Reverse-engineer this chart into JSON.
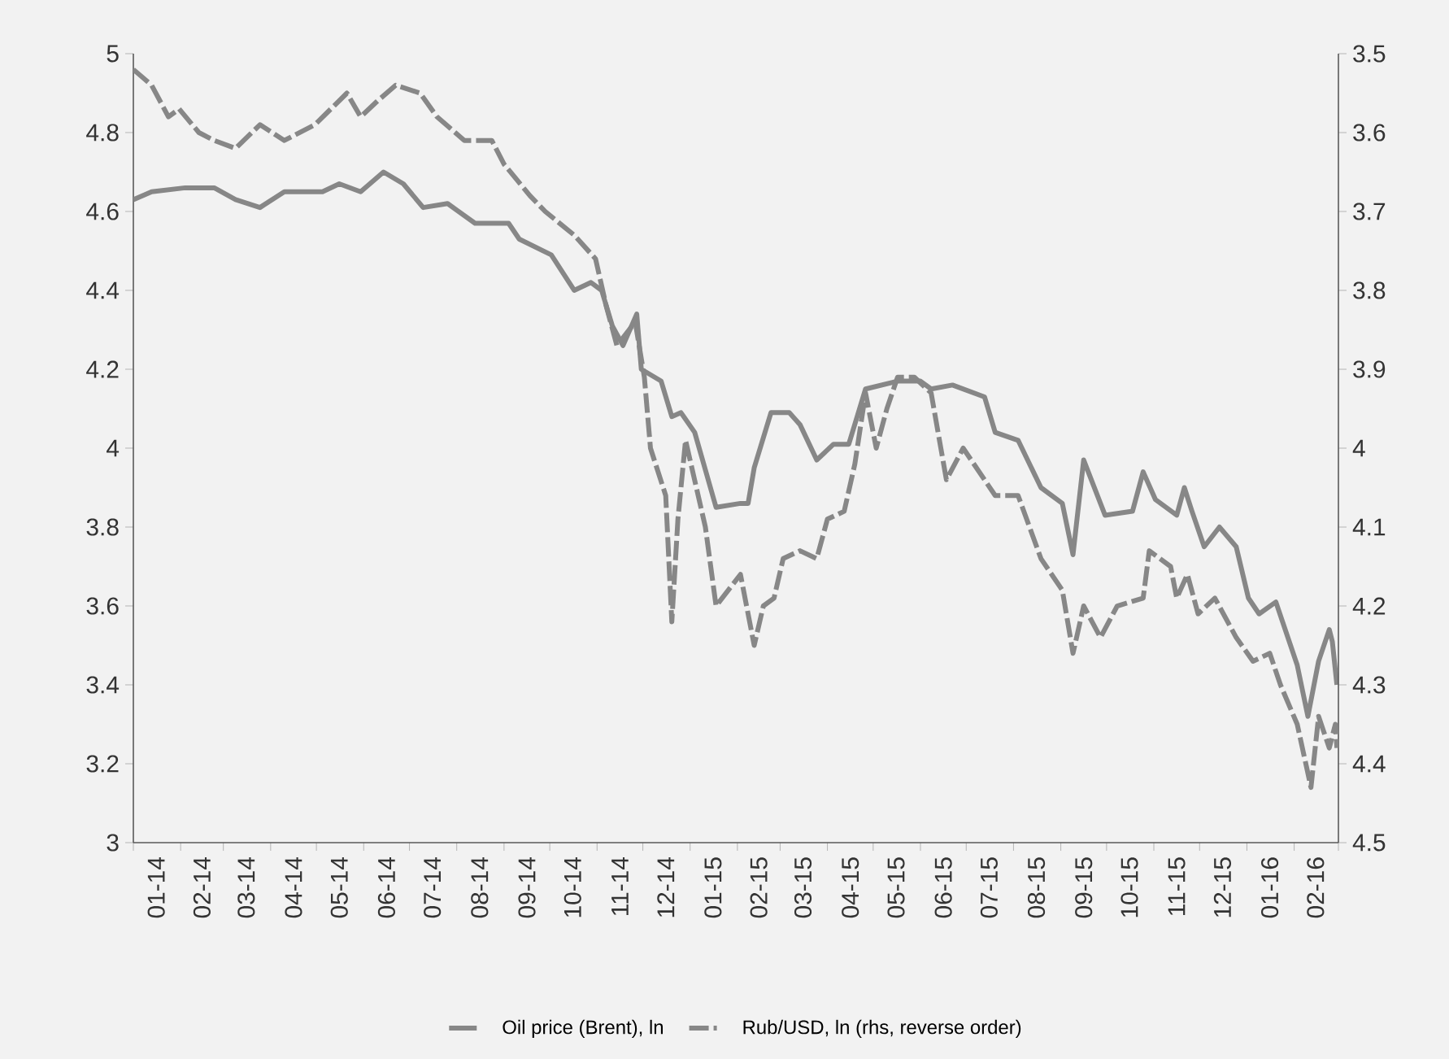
{
  "chart_data": {
    "type": "line",
    "legend": "bottom",
    "xlim": [
      "2014-01-01",
      "2016-03-01"
    ],
    "xticks": [
      {
        "value": "2014-01-01",
        "label": null
      },
      {
        "value": "2014-01-16",
        "label": "01-14"
      },
      {
        "value": "2014-02-01",
        "label": null
      },
      {
        "value": "2014-02-15",
        "label": "02-14"
      },
      {
        "value": "2014-03-01",
        "label": null
      },
      {
        "value": "2014-03-16",
        "label": "03-14"
      },
      {
        "value": "2014-04-01",
        "label": null
      },
      {
        "value": "2014-04-16",
        "label": "04-14"
      },
      {
        "value": "2014-05-01",
        "label": null
      },
      {
        "value": "2014-05-16",
        "label": "05-14"
      },
      {
        "value": "2014-06-01",
        "label": null
      },
      {
        "value": "2014-06-16",
        "label": "06-14"
      },
      {
        "value": "2014-07-01",
        "label": null
      },
      {
        "value": "2014-07-16",
        "label": "07-14"
      },
      {
        "value": "2014-08-01",
        "label": null
      },
      {
        "value": "2014-08-16",
        "label": "08-14"
      },
      {
        "value": "2014-09-01",
        "label": null
      },
      {
        "value": "2014-09-16",
        "label": "09-14"
      },
      {
        "value": "2014-10-01",
        "label": null
      },
      {
        "value": "2014-10-16",
        "label": "10-14"
      },
      {
        "value": "2014-11-01",
        "label": null
      },
      {
        "value": "2014-11-16",
        "label": "11-14"
      },
      {
        "value": "2014-12-01",
        "label": null
      },
      {
        "value": "2014-12-16",
        "label": "12-14"
      },
      {
        "value": "2015-01-01",
        "label": null
      },
      {
        "value": "2015-01-16",
        "label": "01-15"
      },
      {
        "value": "2015-02-01",
        "label": null
      },
      {
        "value": "2015-02-15",
        "label": "02-15"
      },
      {
        "value": "2015-03-01",
        "label": null
      },
      {
        "value": "2015-03-16",
        "label": "03-15"
      },
      {
        "value": "2015-04-01",
        "label": null
      },
      {
        "value": "2015-04-16",
        "label": "04-15"
      },
      {
        "value": "2015-05-01",
        "label": null
      },
      {
        "value": "2015-05-16",
        "label": "05-15"
      },
      {
        "value": "2015-06-01",
        "label": null
      },
      {
        "value": "2015-06-16",
        "label": "06-15"
      },
      {
        "value": "2015-07-01",
        "label": null
      },
      {
        "value": "2015-07-16",
        "label": "07-15"
      },
      {
        "value": "2015-08-01",
        "label": null
      },
      {
        "value": "2015-08-16",
        "label": "08-15"
      },
      {
        "value": "2015-09-01",
        "label": null
      },
      {
        "value": "2015-09-16",
        "label": "09-15"
      },
      {
        "value": "2015-10-01",
        "label": null
      },
      {
        "value": "2015-10-16",
        "label": "10-15"
      },
      {
        "value": "2015-11-01",
        "label": null
      },
      {
        "value": "2015-11-16",
        "label": "11-15"
      },
      {
        "value": "2015-12-01",
        "label": null
      },
      {
        "value": "2015-12-16",
        "label": "12-15"
      },
      {
        "value": "2016-01-01",
        "label": null
      },
      {
        "value": "2016-01-16",
        "label": "01-16"
      },
      {
        "value": "2016-02-01",
        "label": null
      },
      {
        "value": "2016-02-15",
        "label": "02-16"
      },
      {
        "value": "2016-03-01",
        "label": null
      }
    ],
    "ylim": [
      3,
      5
    ],
    "yticks": [
      3,
      3.2,
      3.4,
      3.6,
      3.8,
      4,
      4.2,
      4.4,
      4.6,
      4.8,
      5
    ],
    "y2lim": [
      4.5,
      3.5
    ],
    "y2ticks": [
      3.5,
      3.6,
      3.7,
      3.8,
      3.9,
      4,
      4.1,
      4.2,
      4.3,
      4.4,
      4.5
    ],
    "series": [
      {
        "name": "Oil price (Brent), ln",
        "color": "#878787",
        "line_style": "solid",
        "x": [
          "2014-01-01",
          "2014-01-13",
          "2014-02-04",
          "2014-02-23",
          "2014-03-09",
          "2014-03-25",
          "2014-04-10",
          "2014-05-05",
          "2014-05-16",
          "2014-05-30",
          "2014-06-14",
          "2014-06-27",
          "2014-07-10",
          "2014-07-26",
          "2014-08-13",
          "2014-09-04",
          "2014-09-11",
          "2014-10-02",
          "2014-10-17",
          "2014-10-28",
          "2014-11-04",
          "2014-11-11",
          "2014-11-18",
          "2014-11-27",
          "2014-11-30",
          "2014-12-13",
          "2014-12-20",
          "2014-12-26",
          "2015-01-04",
          "2015-01-18",
          "2015-02-03",
          "2015-02-08",
          "2015-02-12",
          "2015-02-23",
          "2015-03-07",
          "2015-03-14",
          "2015-03-25",
          "2015-04-05",
          "2015-04-15",
          "2015-04-26",
          "2015-05-17",
          "2015-06-01",
          "2015-06-08",
          "2015-06-22",
          "2015-07-13",
          "2015-07-20",
          "2015-08-04",
          "2015-08-19",
          "2015-09-02",
          "2015-09-09",
          "2015-09-16",
          "2015-09-30",
          "2015-10-18",
          "2015-10-25",
          "2015-11-02",
          "2015-11-16",
          "2015-11-21",
          "2015-11-26",
          "2015-12-04",
          "2015-12-14",
          "2015-12-25",
          "2016-01-02",
          "2016-01-09",
          "2016-01-20",
          "2016-02-03",
          "2016-02-10",
          "2016-02-17",
          "2016-02-24",
          "2016-02-26",
          "2016-02-29"
        ],
        "values": [
          4.63,
          4.65,
          4.66,
          4.66,
          4.63,
          4.61,
          4.65,
          4.65,
          4.67,
          4.65,
          4.7,
          4.67,
          4.61,
          4.62,
          4.57,
          4.57,
          4.53,
          4.49,
          4.4,
          4.42,
          4.4,
          4.31,
          4.26,
          4.34,
          4.2,
          4.17,
          4.08,
          4.09,
          4.04,
          3.85,
          3.86,
          3.86,
          3.95,
          4.09,
          4.09,
          4.06,
          3.97,
          4.01,
          4.01,
          4.15,
          4.17,
          4.17,
          4.15,
          4.16,
          4.13,
          4.04,
          4.02,
          3.9,
          3.86,
          3.73,
          3.97,
          3.83,
          3.84,
          3.94,
          3.87,
          3.83,
          3.9,
          3.84,
          3.75,
          3.8,
          3.75,
          3.62,
          3.58,
          3.61,
          3.45,
          3.32,
          3.46,
          3.54,
          3.51,
          3.4
        ]
      },
      {
        "name": "Rub/USD, ln (rhs, reverse order)",
        "color": "#878787",
        "line_style": "dashed",
        "axis": "y2",
        "x": [
          "2014-01-01",
          "2014-01-13",
          "2014-01-24",
          "2014-01-31",
          "2014-02-13",
          "2014-02-23",
          "2014-03-09",
          "2014-03-25",
          "2014-04-10",
          "2014-04-30",
          "2014-05-21",
          "2014-05-30",
          "2014-06-10",
          "2014-06-22",
          "2014-07-08",
          "2014-07-19",
          "2014-08-06",
          "2014-08-24",
          "2014-09-01",
          "2014-09-18",
          "2014-09-28",
          "2014-10-17",
          "2014-10-31",
          "2014-11-07",
          "2014-11-14",
          "2014-11-26",
          "2014-12-02",
          "2014-12-06",
          "2014-12-16",
          "2014-12-20",
          "2014-12-24",
          "2014-12-29",
          "2015-01-11",
          "2015-01-18",
          "2015-02-03",
          "2015-02-12",
          "2015-02-18",
          "2015-02-25",
          "2015-03-03",
          "2015-03-14",
          "2015-03-25",
          "2015-04-01",
          "2015-04-12",
          "2015-04-19",
          "2015-04-26",
          "2015-05-03",
          "2015-05-10",
          "2015-05-17",
          "2015-05-28",
          "2015-06-08",
          "2015-06-18",
          "2015-06-29",
          "2015-07-20",
          "2015-08-04",
          "2015-08-19",
          "2015-09-02",
          "2015-09-09",
          "2015-09-16",
          "2015-09-27",
          "2015-10-08",
          "2015-10-25",
          "2015-10-29",
          "2015-11-12",
          "2015-11-16",
          "2015-11-23",
          "2015-11-30",
          "2015-12-11",
          "2015-12-25",
          "2016-01-05",
          "2016-01-16",
          "2016-01-23",
          "2016-02-03",
          "2016-02-12",
          "2016-02-17",
          "2016-02-24",
          "2016-02-28",
          "2016-02-29"
        ],
        "values": [
          3.52,
          3.54,
          3.58,
          3.57,
          3.6,
          3.61,
          3.62,
          3.59,
          3.61,
          3.59,
          3.55,
          3.58,
          3.56,
          3.54,
          3.55,
          3.58,
          3.61,
          3.61,
          3.64,
          3.68,
          3.7,
          3.73,
          3.76,
          3.82,
          3.87,
          3.84,
          3.91,
          4.0,
          4.06,
          4.22,
          4.09,
          3.99,
          4.1,
          4.2,
          4.16,
          4.25,
          4.2,
          4.19,
          4.14,
          4.13,
          4.14,
          4.09,
          4.08,
          4.02,
          3.93,
          4.0,
          3.95,
          3.91,
          3.91,
          3.93,
          4.04,
          4.0,
          4.06,
          4.06,
          4.14,
          4.18,
          4.26,
          4.2,
          4.24,
          4.2,
          4.19,
          4.13,
          4.15,
          4.19,
          4.16,
          4.21,
          4.19,
          4.24,
          4.27,
          4.26,
          4.3,
          4.35,
          4.43,
          4.34,
          4.38,
          4.35,
          4.38
        ]
      }
    ]
  }
}
